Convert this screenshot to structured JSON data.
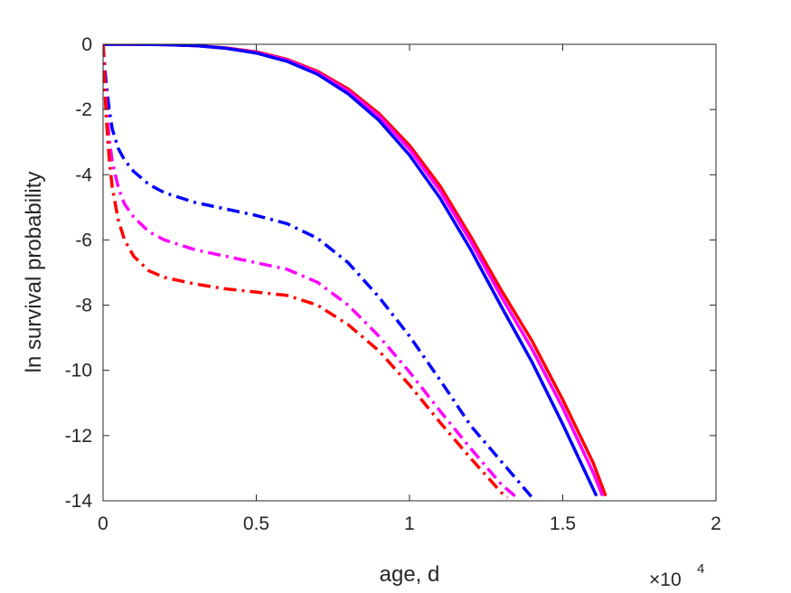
{
  "chart_data": {
    "type": "line",
    "title": "",
    "xlabel": "age, d",
    "ylabel": "ln survival probability",
    "x_multiplier_label": {
      "base": "×10",
      "exponent": "4"
    },
    "xlim": [
      0,
      20000
    ],
    "ylim": [
      -14,
      0
    ],
    "xticks": [
      0,
      5000,
      10000,
      15000,
      20000
    ],
    "xtick_labels": [
      "0",
      "0.5",
      "1",
      "1.5",
      "2"
    ],
    "yticks": [
      0,
      -2,
      -4,
      -6,
      -8,
      -10,
      -12,
      -14
    ],
    "ytick_labels": [
      "0",
      "-2",
      "-4",
      "-6",
      "-8",
      "-10",
      "-12",
      "-14"
    ],
    "grid": false,
    "series": [
      {
        "color": "#ff0000",
        "style": "solid",
        "x": [
          0,
          1000,
          2000,
          3000,
          4000,
          5000,
          6000,
          7000,
          8000,
          9000,
          10000,
          11000,
          12000,
          13000,
          14000,
          15000,
          16000,
          16400
        ],
        "y": [
          0,
          0,
          -0.01,
          -0.04,
          -0.11,
          -0.23,
          -0.46,
          -0.83,
          -1.37,
          -2.12,
          -3.1,
          -4.35,
          -5.9,
          -7.55,
          -9.1,
          -10.9,
          -12.85,
          -13.85
        ]
      },
      {
        "color": "#ff00ff",
        "style": "solid",
        "x": [
          0,
          1000,
          2000,
          3000,
          4000,
          5000,
          6000,
          7000,
          8000,
          9000,
          10000,
          11000,
          12000,
          13000,
          14000,
          15000,
          16000,
          16300
        ],
        "y": [
          0,
          0,
          -0.01,
          -0.04,
          -0.12,
          -0.25,
          -0.48,
          -0.87,
          -1.43,
          -2.2,
          -3.22,
          -4.5,
          -6.05,
          -7.75,
          -9.35,
          -11.15,
          -13.15,
          -13.85
        ]
      },
      {
        "color": "#0000ff",
        "style": "solid",
        "x": [
          0,
          1000,
          2000,
          3000,
          4000,
          5000,
          6000,
          7000,
          8000,
          9000,
          10000,
          11000,
          12000,
          13000,
          14000,
          15000,
          16000,
          16100
        ],
        "y": [
          0,
          0,
          -0.01,
          -0.04,
          -0.12,
          -0.27,
          -0.52,
          -0.92,
          -1.52,
          -2.33,
          -3.4,
          -4.72,
          -6.3,
          -8.05,
          -9.75,
          -11.65,
          -13.65,
          -13.85
        ]
      },
      {
        "color": "#0000ff",
        "style": "dashdot",
        "x": [
          0,
          100,
          200,
          300,
          500,
          700,
          1000,
          1500,
          2000,
          3000,
          4000,
          5000,
          6000,
          7000,
          8000,
          9000,
          10000,
          11000,
          12000,
          13000,
          14000
        ],
        "y": [
          0,
          -1.2,
          -2.0,
          -2.6,
          -3.2,
          -3.55,
          -3.9,
          -4.3,
          -4.55,
          -4.85,
          -5.05,
          -5.25,
          -5.5,
          -5.95,
          -6.7,
          -7.75,
          -8.95,
          -10.3,
          -11.7,
          -12.8,
          -13.9
        ]
      },
      {
        "color": "#ff00ff",
        "style": "dashdot",
        "x": [
          0,
          100,
          200,
          300,
          500,
          700,
          1000,
          1500,
          2000,
          3000,
          4000,
          5000,
          6000,
          7000,
          8000,
          9000,
          10000,
          11000,
          12000,
          13000,
          13500
        ],
        "y": [
          0,
          -1.8,
          -2.9,
          -3.6,
          -4.4,
          -4.9,
          -5.3,
          -5.75,
          -6.0,
          -6.3,
          -6.5,
          -6.7,
          -6.9,
          -7.3,
          -8.0,
          -8.95,
          -10.05,
          -11.25,
          -12.4,
          -13.5,
          -13.9
        ]
      },
      {
        "color": "#ff0000",
        "style": "dashdot",
        "x": [
          0,
          100,
          200,
          300,
          500,
          700,
          1000,
          1500,
          2000,
          3000,
          4000,
          5000,
          6000,
          7000,
          8000,
          9000,
          10000,
          11000,
          12000,
          13000,
          13200
        ],
        "y": [
          0,
          -2.2,
          -3.5,
          -4.4,
          -5.4,
          -6.0,
          -6.5,
          -6.95,
          -7.15,
          -7.35,
          -7.5,
          -7.6,
          -7.7,
          -8.0,
          -8.6,
          -9.4,
          -10.45,
          -11.6,
          -12.7,
          -13.75,
          -13.9
        ]
      }
    ]
  }
}
